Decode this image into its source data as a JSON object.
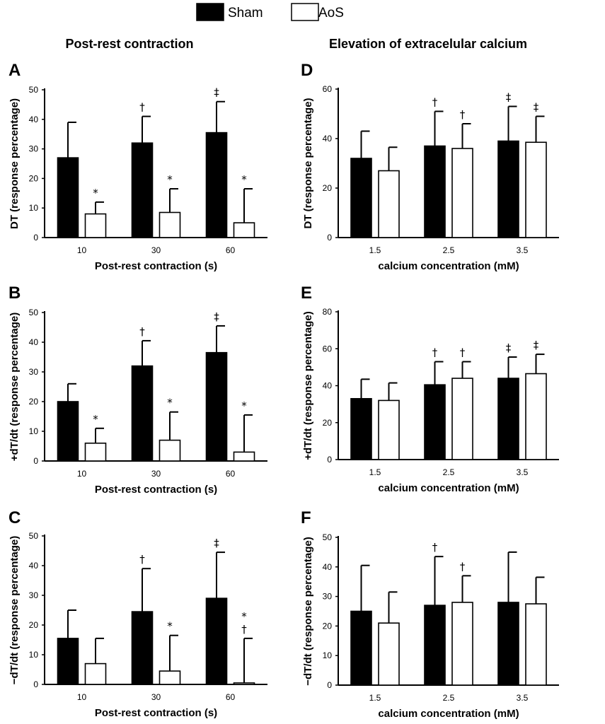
{
  "legend": {
    "items": [
      {
        "label": "Sham",
        "color": "#000000"
      },
      {
        "label": "AoS",
        "color": "#ffffff"
      }
    ]
  },
  "column_titles": [
    "Post-rest contraction",
    "Elevation of extracelular calcium"
  ],
  "chart_data": [
    {
      "type": "bar",
      "panel": "A",
      "categories": [
        "10",
        "30",
        "60"
      ],
      "xlabel": "Post-rest contraction (s)",
      "ylabel": "DT (response percentage)",
      "ylim": [
        0,
        50
      ],
      "yticks": [
        0,
        10,
        20,
        30,
        40,
        50
      ],
      "series": [
        {
          "name": "Sham",
          "values": [
            27,
            32,
            35.5
          ],
          "errors": [
            12,
            9,
            10.5
          ],
          "marks": [
            "",
            "†",
            "‡"
          ]
        },
        {
          "name": "AoS",
          "values": [
            8,
            8.5,
            5
          ],
          "errors": [
            4,
            8,
            11.5
          ],
          "marks": [
            "*",
            "*",
            "*"
          ]
        }
      ]
    },
    {
      "type": "bar",
      "panel": "B",
      "categories": [
        "10",
        "30",
        "60"
      ],
      "xlabel": "Post-rest contraction (s)",
      "ylabel": "+dT/dt (response percentage)",
      "ylim": [
        0,
        50
      ],
      "yticks": [
        0,
        10,
        20,
        30,
        40,
        50
      ],
      "series": [
        {
          "name": "Sham",
          "values": [
            20,
            32,
            36.5
          ],
          "errors": [
            6,
            8.5,
            9
          ],
          "marks": [
            "",
            "†",
            "‡"
          ]
        },
        {
          "name": "AoS",
          "values": [
            6,
            7,
            3
          ],
          "errors": [
            5,
            9.5,
            12.5
          ],
          "marks": [
            "*",
            "*",
            "*"
          ]
        }
      ]
    },
    {
      "type": "bar",
      "panel": "C",
      "categories": [
        "10",
        "30",
        "60"
      ],
      "xlabel": "Post-rest contraction (s)",
      "ylabel": "−dT/dt (response percentage)",
      "ylim": [
        0,
        50
      ],
      "yticks": [
        0,
        10,
        20,
        30,
        40,
        50
      ],
      "series": [
        {
          "name": "Sham",
          "values": [
            15.5,
            24.5,
            29
          ],
          "errors": [
            9.5,
            14.5,
            15.5
          ],
          "marks": [
            "",
            "†",
            "‡"
          ]
        },
        {
          "name": "AoS",
          "values": [
            7,
            4.5,
            0.5
          ],
          "errors": [
            8.5,
            12,
            15
          ],
          "marks": [
            "",
            "*",
            "*\n†"
          ]
        }
      ]
    },
    {
      "type": "bar",
      "panel": "D",
      "categories": [
        "1.5",
        "2.5",
        "3.5"
      ],
      "xlabel": "calcium concentration (mM)",
      "ylabel": "DT (response percentage)",
      "ylim": [
        0,
        60
      ],
      "yticks": [
        0,
        20,
        40,
        60
      ],
      "series": [
        {
          "name": "Sham",
          "values": [
            32,
            37,
            39
          ],
          "errors": [
            11,
            14,
            14
          ],
          "marks": [
            "",
            "†",
            "‡"
          ]
        },
        {
          "name": "AoS",
          "values": [
            27,
            36,
            38.5
          ],
          "errors": [
            9.5,
            10,
            10.5
          ],
          "marks": [
            "",
            "†",
            "‡"
          ]
        }
      ]
    },
    {
      "type": "bar",
      "panel": "E",
      "categories": [
        "1.5",
        "2.5",
        "3.5"
      ],
      "xlabel": "calcium concentration (mM)",
      "ylabel": "+dT/dt (response percentage)",
      "ylim": [
        0,
        80
      ],
      "yticks": [
        0,
        20,
        40,
        60,
        80
      ],
      "series": [
        {
          "name": "Sham",
          "values": [
            33,
            40.5,
            44
          ],
          "errors": [
            10.5,
            12.5,
            11.5
          ],
          "marks": [
            "",
            "†",
            "‡"
          ]
        },
        {
          "name": "AoS",
          "values": [
            32,
            44,
            46.5
          ],
          "errors": [
            9.5,
            9,
            10.5
          ],
          "marks": [
            "",
            "†",
            "‡"
          ]
        }
      ]
    },
    {
      "type": "bar",
      "panel": "F",
      "categories": [
        "1.5",
        "2.5",
        "3.5"
      ],
      "xlabel": "calcium concentration (mM)",
      "ylabel": "−dT/dt (response percentage)",
      "ylim": [
        0,
        50
      ],
      "yticks": [
        0,
        10,
        20,
        30,
        40,
        50
      ],
      "series": [
        {
          "name": "Sham",
          "values": [
            25,
            27,
            28
          ],
          "errors": [
            15.5,
            16.5,
            17
          ],
          "marks": [
            "",
            "†",
            ""
          ]
        },
        {
          "name": "AoS",
          "values": [
            21,
            28,
            27.5
          ],
          "errors": [
            10.5,
            9,
            9
          ],
          "marks": [
            "",
            "†",
            ""
          ]
        }
      ]
    }
  ]
}
